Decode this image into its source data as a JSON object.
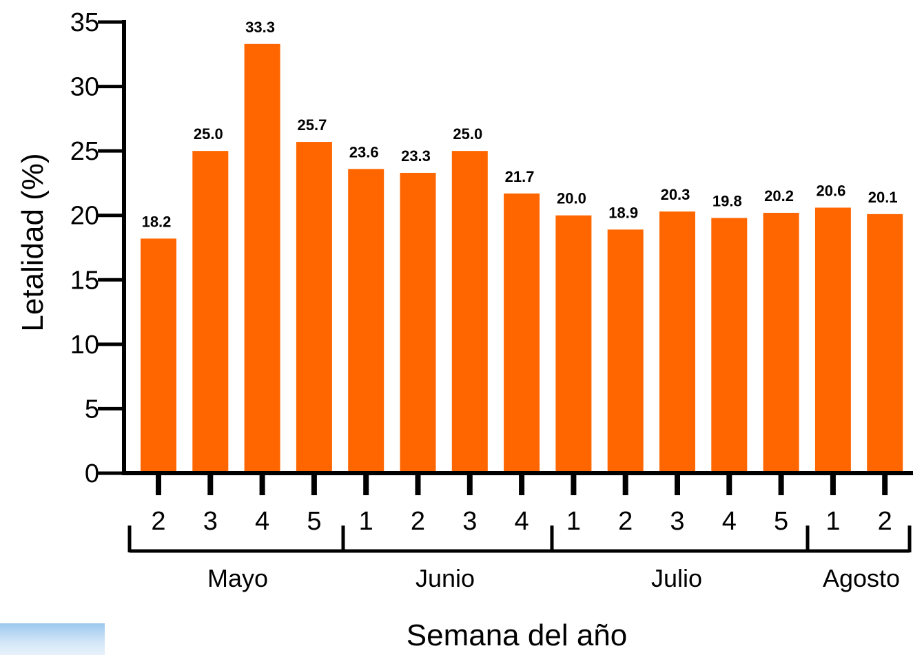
{
  "chart_data": {
    "type": "bar",
    "title": "",
    "xlabel": "Semana del año",
    "ylabel": "Letalidad (%)",
    "ylim": [
      0,
      35
    ],
    "yticks": [
      0,
      5,
      10,
      15,
      20,
      25,
      30,
      35
    ],
    "bar_color": "#ff6600",
    "categories": [
      "2",
      "3",
      "4",
      "5",
      "1",
      "2",
      "3",
      "4",
      "1",
      "2",
      "3",
      "4",
      "5",
      "1",
      "2"
    ],
    "values": [
      18.2,
      25.0,
      33.3,
      25.7,
      23.6,
      23.3,
      25.0,
      21.7,
      20.0,
      18.9,
      20.3,
      19.8,
      20.2,
      20.6,
      20.1
    ],
    "data_labels": [
      "18.2",
      "25.0",
      "33.3",
      "25.7",
      "23.6",
      "23.3",
      "25.0",
      "21.7",
      "20.0",
      "18.9",
      "20.3",
      "19.8",
      "20.2",
      "20.6",
      "20.1"
    ],
    "groups": [
      {
        "label": "Mayo",
        "start": 0,
        "end": 3
      },
      {
        "label": "Junio",
        "start": 4,
        "end": 7
      },
      {
        "label": "Julio",
        "start": 8,
        "end": 12
      },
      {
        "label": "Agosto",
        "start": 13,
        "end": 14
      }
    ],
    "grid": false,
    "legend": "none"
  }
}
